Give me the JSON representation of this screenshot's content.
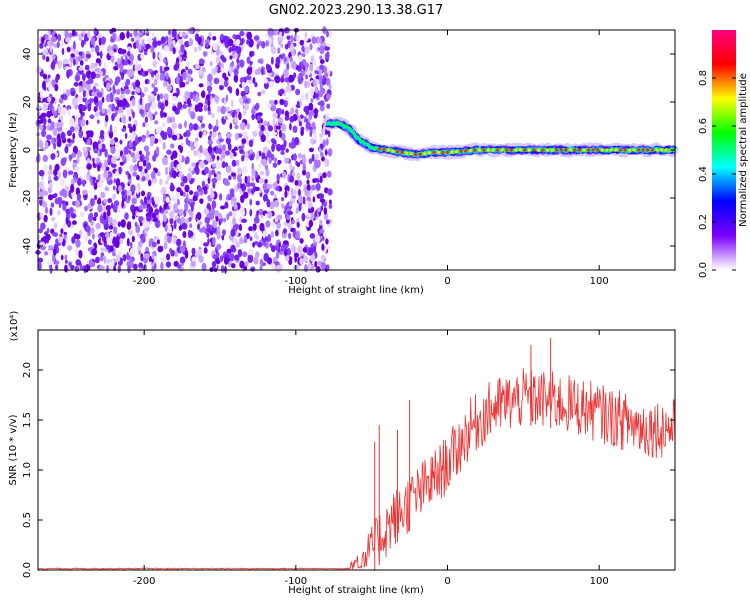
{
  "title": "GN02.2023.290.13.38.G17",
  "chart_data": [
    {
      "type": "heatmap",
      "name": "spectrogram",
      "xlabel": "Height of straight line (km)",
      "ylabel": "Frequency (Hz)",
      "xlim": [
        -270,
        150
      ],
      "ylim": [
        -50,
        50
      ],
      "xticks": [
        -200,
        -100,
        0,
        100
      ],
      "yticks": [
        -40,
        -20,
        0,
        20,
        40
      ],
      "ridge": {
        "x": [
          -80,
          -72,
          -65,
          -58,
          -50,
          -40,
          -30,
          -20,
          -10,
          0,
          20,
          50,
          80,
          110,
          150
        ],
        "frequency": [
          11,
          11,
          9,
          4,
          1,
          0,
          -1,
          -2,
          -1,
          -1,
          0,
          0,
          0,
          0,
          0
        ]
      },
      "noise_region_x": [
        -270,
        -80
      ],
      "colorbar": {
        "label": "Normalized spectral amplitude",
        "range": [
          0,
          1
        ],
        "ticks": [
          "0.0",
          "0.2",
          "0.4",
          "0.6",
          "0.8"
        ],
        "stops": [
          "#ffffff",
          "#7b00ff",
          "#0000ff",
          "#00ffff",
          "#00ff00",
          "#ffff00",
          "#ff0000",
          "#ff0080"
        ]
      }
    },
    {
      "type": "line",
      "name": "snr",
      "xlabel": "Height of straight line (km)",
      "ylabel": "SNR (10 * v/v)",
      "scale_note": "(x10⁴)",
      "xlim": [
        -270,
        150
      ],
      "ylim": [
        0,
        2.4
      ],
      "xticks": [
        -200,
        -100,
        0,
        100
      ],
      "yticks": [
        "0.0",
        "0.5",
        "1.0",
        "1.5",
        "2.0"
      ],
      "line_color": "#ee3333",
      "envelope": {
        "x": [
          -270,
          -65,
          -55,
          -45,
          -35,
          -25,
          -15,
          -5,
          5,
          15,
          30,
          50,
          70,
          90,
          110,
          130,
          150
        ],
        "y": [
          0.01,
          0.02,
          0.15,
          0.35,
          0.55,
          0.7,
          0.85,
          1.0,
          1.2,
          1.45,
          1.65,
          1.75,
          1.72,
          1.65,
          1.55,
          1.45,
          1.45
        ]
      },
      "noise_amplitude": 0.3,
      "spikes": [
        {
          "x": -48,
          "y": 1.28
        },
        {
          "x": -45,
          "y": 1.45
        },
        {
          "x": -33,
          "y": 1.4
        },
        {
          "x": -25,
          "y": 1.7
        },
        {
          "x": 55,
          "y": 2.25
        },
        {
          "x": 68,
          "y": 2.32
        }
      ]
    }
  ]
}
